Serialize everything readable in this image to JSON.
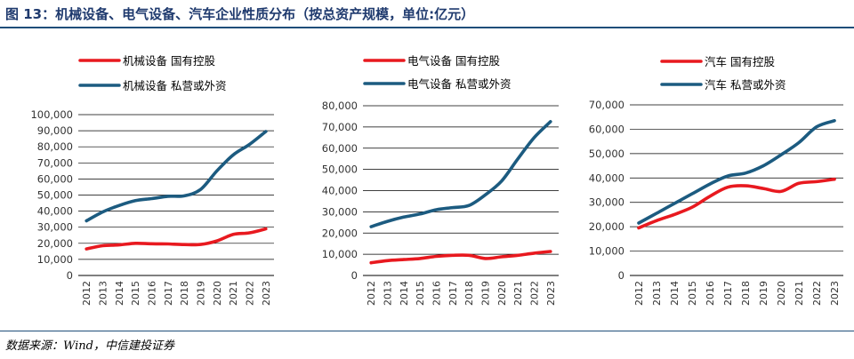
{
  "figure_title": "图 13：机械设备、电气设备、汽车企业性质分布（按总资产规模，单位:亿元）",
  "source_note": "数据来源：Wind，中信建投证券",
  "colors": {
    "state": "#e8191f",
    "private": "#1c5b80",
    "axis": "#000000",
    "grid": "#000000",
    "header": "#1f3a6e"
  },
  "chart_data": [
    {
      "type": "line",
      "x": [
        "2012",
        "2013",
        "2014",
        "2015",
        "2016",
        "2017",
        "2018",
        "2019",
        "2020",
        "2021",
        "2022",
        "2023"
      ],
      "ylim": [
        0,
        100000
      ],
      "yticks": [
        "0",
        "10,000",
        "20,000",
        "30,000",
        "40,000",
        "50,000",
        "60,000",
        "70,000",
        "80,000",
        "90,000",
        "100,000"
      ],
      "grid": true,
      "legend": "top",
      "series": [
        {
          "name": "机械设备 国有控股",
          "values": [
            16500,
            18500,
            19000,
            20000,
            19700,
            19600,
            19200,
            19300,
            21500,
            25500,
            26500,
            29000
          ]
        },
        {
          "name": "机械设备 私营或外资",
          "values": [
            34000,
            39500,
            43500,
            46500,
            47800,
            49200,
            49500,
            53500,
            65000,
            75000,
            81500,
            89500
          ]
        }
      ]
    },
    {
      "type": "line",
      "x": [
        "2012",
        "2013",
        "2014",
        "2015",
        "2016",
        "2017",
        "2018",
        "2019",
        "2020",
        "2021",
        "2022",
        "2023"
      ],
      "ylim": [
        0,
        80000
      ],
      "yticks": [
        "0",
        "10,000",
        "20,000",
        "30,000",
        "40,000",
        "50,000",
        "60,000",
        "70,000",
        "80,000"
      ],
      "grid": true,
      "legend": "top",
      "series": [
        {
          "name": "电气设备 国有控股",
          "values": [
            6000,
            7000,
            7500,
            8000,
            9000,
            9500,
            9500,
            8000,
            8800,
            9500,
            10500,
            11300
          ]
        },
        {
          "name": "电气设备 私营或外资",
          "values": [
            23000,
            25500,
            27500,
            29000,
            31000,
            32000,
            33000,
            38000,
            44500,
            55000,
            65000,
            72500
          ]
        }
      ]
    },
    {
      "type": "line",
      "x": [
        "2012",
        "2013",
        "2014",
        "2015",
        "2016",
        "2017",
        "2018",
        "2019",
        "2020",
        "2021",
        "2022",
        "2023"
      ],
      "ylim": [
        0,
        70000
      ],
      "yticks": [
        "0",
        "10,000",
        "20,000",
        "30,000",
        "40,000",
        "50,000",
        "60,000",
        "70,000"
      ],
      "grid": true,
      "legend": "top",
      "series": [
        {
          "name": "汽车 国有控股",
          "values": [
            19500,
            22500,
            25000,
            28000,
            32500,
            36200,
            36800,
            35700,
            34500,
            37800,
            38500,
            39500
          ]
        },
        {
          "name": "汽车 私营或外资",
          "values": [
            21500,
            25500,
            29500,
            33500,
            37500,
            40800,
            42000,
            45000,
            49500,
            54500,
            61000,
            63500
          ]
        }
      ]
    }
  ]
}
